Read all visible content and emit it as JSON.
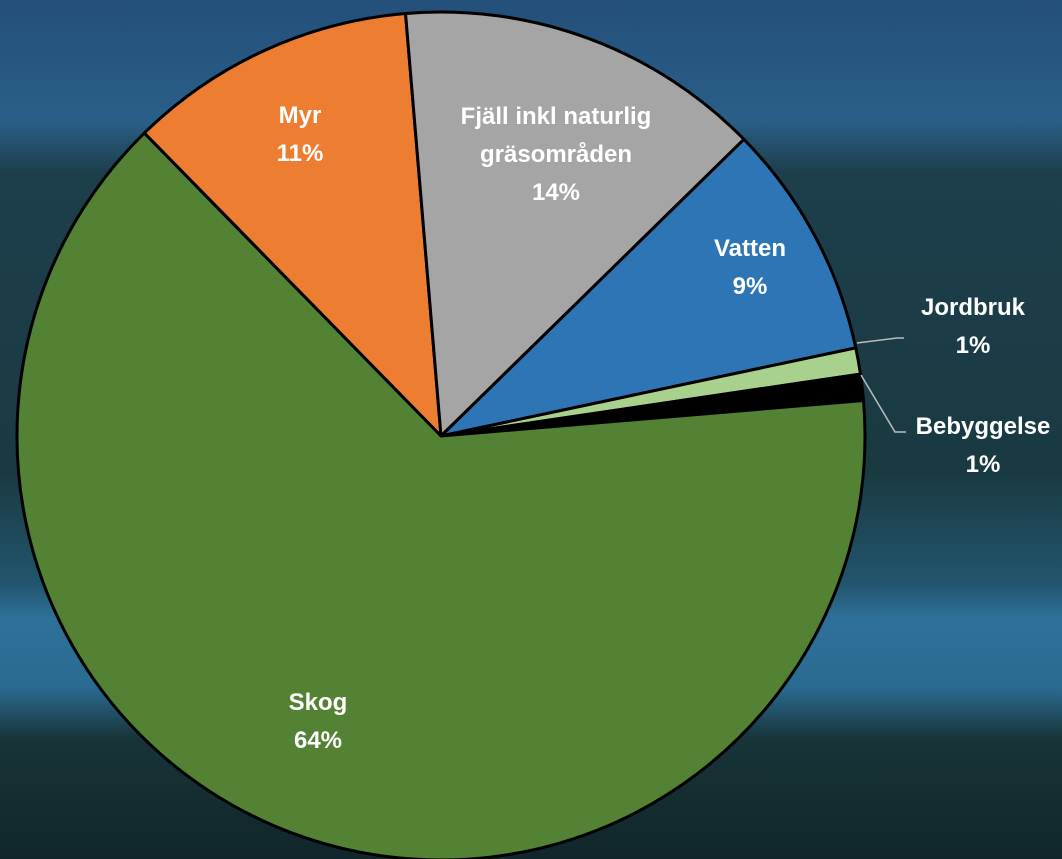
{
  "chart_data": {
    "type": "pie",
    "categories": [
      "Myr",
      "Fjäll inkl naturlig gräsområden",
      "Vatten",
      "Jordbruk",
      "Bebyggelse",
      "Skog"
    ],
    "values": [
      11,
      14,
      9,
      1,
      1,
      64
    ],
    "value_labels": [
      "11%",
      "14%",
      "9%",
      "1%",
      "1%",
      "64%"
    ],
    "colors": [
      "#ed7d31",
      "#a5a5a5",
      "#2e75b6",
      "#a9d18e",
      "#000000",
      "#548235"
    ]
  }
}
